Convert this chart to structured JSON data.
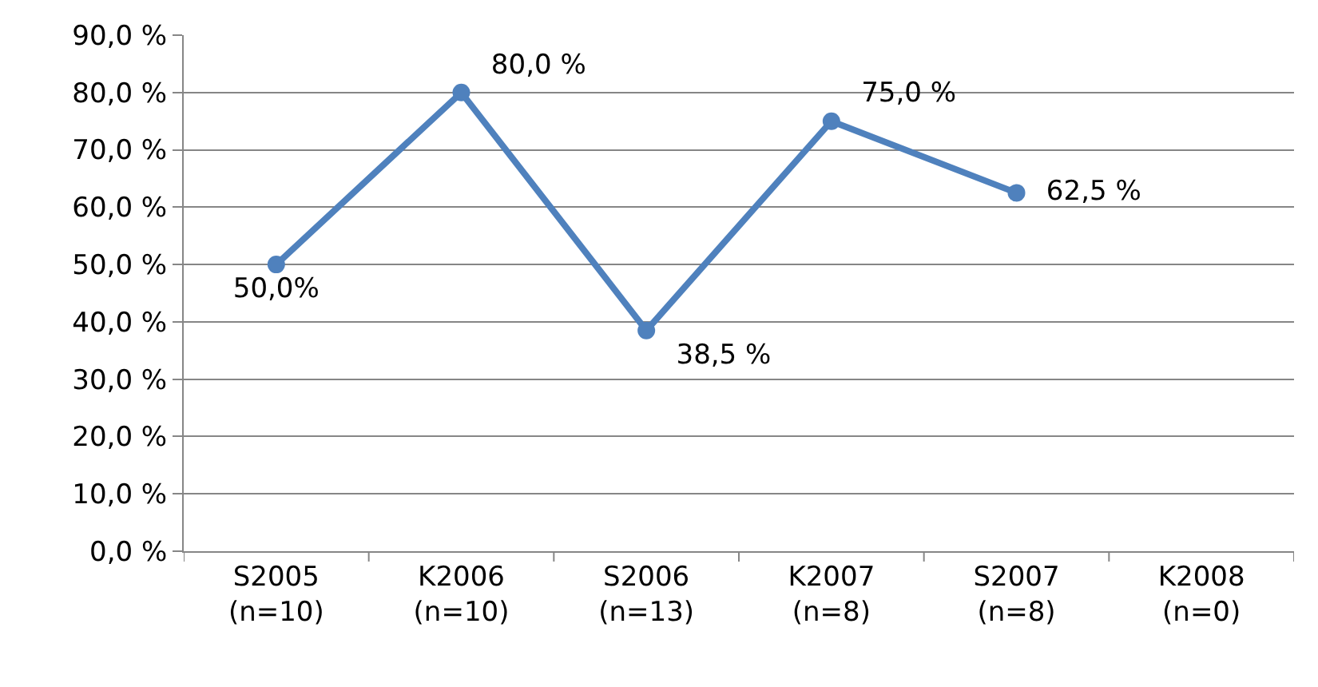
{
  "chart_data": {
    "type": "line",
    "categories": [
      "S2005\n(n=10)",
      "K2006\n(n=10)",
      "S2006\n(n=13)",
      "K2007\n(n=8)",
      "S2007\n(n=8)",
      "K2008\n(n=0)"
    ],
    "values": [
      50.0,
      80.0,
      38.5,
      75.0,
      62.5,
      null
    ],
    "value_labels": [
      "50,0%",
      "80,0 %",
      "38,5 %",
      "75,0 %",
      "62,5 %",
      null
    ],
    "color": "#4f81bd",
    "marker": "circle",
    "line_style": "solid",
    "grid": "y",
    "legend": false,
    "ylim": [
      0,
      90
    ],
    "yticks": [
      {
        "value": 0,
        "label": "0,0 %"
      },
      {
        "value": 10,
        "label": "10,0 %"
      },
      {
        "value": 20,
        "label": "20,0 %"
      },
      {
        "value": 30,
        "label": "30,0 %"
      },
      {
        "value": 40,
        "label": "40,0 %"
      },
      {
        "value": 50,
        "label": "50,0 %"
      },
      {
        "value": 60,
        "label": "60,0 %"
      },
      {
        "value": 70,
        "label": "70,0 %"
      },
      {
        "value": 80,
        "label": "80,0 %"
      },
      {
        "value": 90,
        "label": "90,0 %"
      }
    ]
  }
}
